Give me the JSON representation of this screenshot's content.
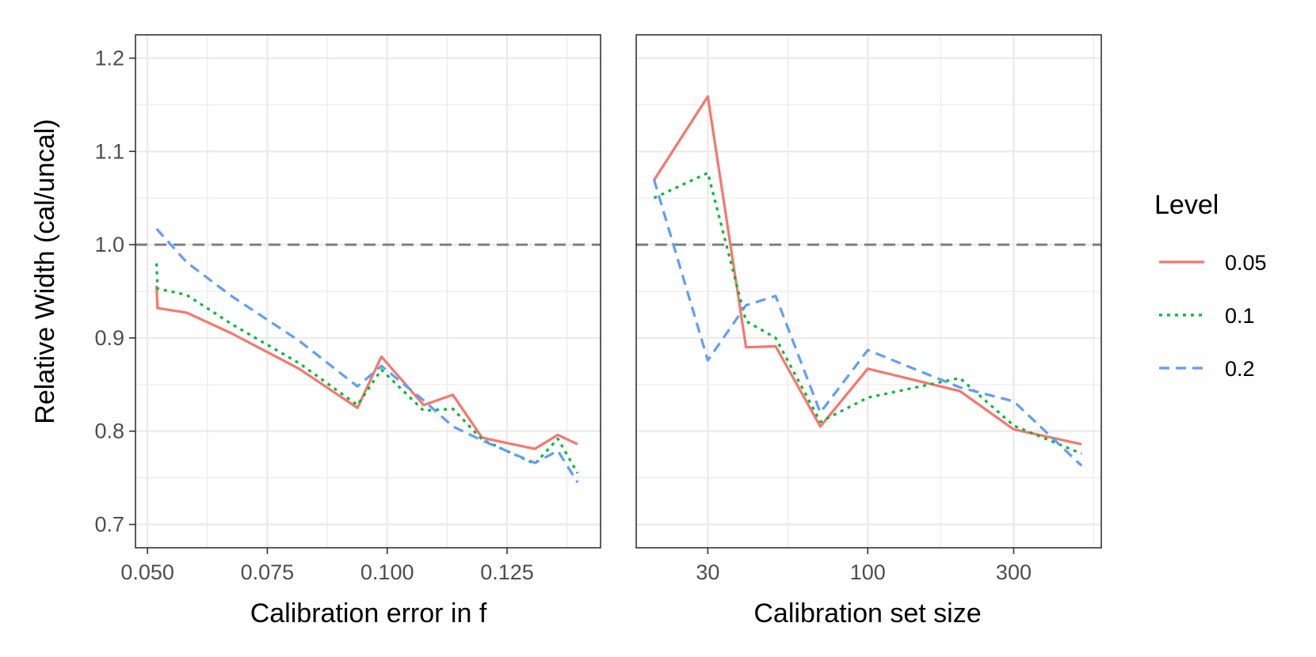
{
  "chart_data": [
    {
      "type": "line",
      "panel": "left",
      "xlabel": "Calibration error in f",
      "ylabel": "Relative Width (cal/uncal)",
      "x_scale": "linear",
      "xlim": [
        0.0475,
        0.1445
      ],
      "ylim": [
        0.675,
        1.225
      ],
      "x_ticks": [
        0.05,
        0.075,
        0.1,
        0.125
      ],
      "x_tick_labels": [
        "0.050",
        "0.075",
        "0.100",
        "0.125"
      ],
      "y_ticks": [
        0.7,
        0.8,
        0.9,
        1.0,
        1.1,
        1.2
      ],
      "y_tick_labels": [
        "0.7",
        "0.8",
        "0.9",
        "1.0",
        "1.1",
        "1.2"
      ],
      "reference_line": 1.0,
      "grid": true,
      "series": [
        {
          "name": "0.05",
          "x": [
            0.0519,
            0.0521,
            0.0582,
            0.0675,
            0.0816,
            0.0938,
            0.0988,
            0.1076,
            0.1137,
            0.1198,
            0.1308,
            0.1356,
            0.1397
          ],
          "y": [
            0.956,
            0.932,
            0.927,
            0.905,
            0.867,
            0.825,
            0.88,
            0.828,
            0.839,
            0.793,
            0.781,
            0.796,
            0.786
          ]
        },
        {
          "name": "0.1",
          "x": [
            0.0519,
            0.0521,
            0.0582,
            0.0675,
            0.0816,
            0.0938,
            0.0988,
            0.1076,
            0.1137,
            0.1198,
            0.1308,
            0.1356,
            0.1397
          ],
          "y": [
            0.98,
            0.953,
            0.946,
            0.915,
            0.873,
            0.828,
            0.866,
            0.822,
            0.824,
            0.791,
            0.765,
            0.792,
            0.755
          ]
        },
        {
          "name": "0.2",
          "x": [
            0.0519,
            0.0582,
            0.0675,
            0.0816,
            0.0938,
            0.0988,
            0.1076,
            0.1137,
            0.1198,
            0.1308,
            0.1356,
            0.1397
          ],
          "y": [
            1.017,
            0.981,
            0.945,
            0.897,
            0.848,
            0.87,
            0.833,
            0.805,
            0.79,
            0.766,
            0.779,
            0.745
          ]
        }
      ]
    },
    {
      "type": "line",
      "panel": "right",
      "xlabel": "Calibration set size",
      "x_scale": "log10",
      "xlim": [
        17.5,
        580
      ],
      "ylim": [
        0.675,
        1.225
      ],
      "x_ticks": [
        30,
        100,
        300
      ],
      "x_tick_labels": [
        "30",
        "100",
        "300"
      ],
      "y_ticks": [
        0.7,
        0.8,
        0.9,
        1.0,
        1.1,
        1.2
      ],
      "reference_line": 1.0,
      "grid": true,
      "series": [
        {
          "name": "0.05",
          "x": [
            20,
            30,
            40,
            50,
            70,
            100,
            200,
            300,
            500
          ],
          "y": [
            1.069,
            1.159,
            0.89,
            0.891,
            0.805,
            0.867,
            0.843,
            0.802,
            0.786
          ]
        },
        {
          "name": "0.1",
          "x": [
            20,
            30,
            40,
            50,
            70,
            100,
            200,
            300,
            500
          ],
          "y": [
            1.05,
            1.077,
            0.918,
            0.9,
            0.81,
            0.836,
            0.857,
            0.806,
            0.776
          ]
        },
        {
          "name": "0.2",
          "x": [
            20,
            30,
            40,
            50,
            70,
            100,
            200,
            300,
            500
          ],
          "y": [
            1.07,
            0.876,
            0.935,
            0.945,
            0.82,
            0.887,
            0.847,
            0.832,
            0.763
          ]
        }
      ]
    }
  ],
  "legend": {
    "title": "Level",
    "position": "right",
    "items": [
      {
        "label": "0.05",
        "color": "#F8766D",
        "dash": "solid"
      },
      {
        "label": "0.1",
        "color": "#00BA38",
        "dash": "dotted"
      },
      {
        "label": "0.2",
        "color": "#619CFF",
        "dash": "dashed"
      }
    ]
  },
  "colors": {
    "series_0": "#F8766D",
    "series_1": "#00BA38",
    "series_2": "#619CFF",
    "reference_line": "#7f7f7f",
    "grid": "#ebebeb",
    "panel_border": "#333333"
  }
}
